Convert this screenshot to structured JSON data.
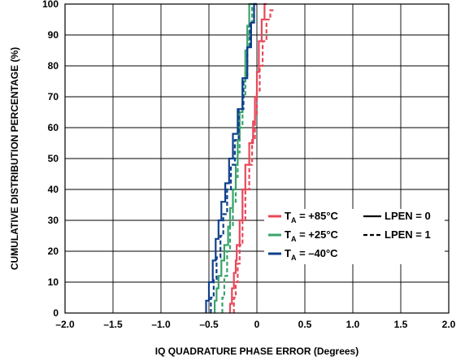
{
  "chart_data": {
    "type": "line",
    "xlabel": "IQ QUADRATURE PHASE ERROR (Degrees)",
    "ylabel": "CUMULATIVE DISTRIBUTION PERCENTAGE (%)",
    "xlim": [
      -2.0,
      2.0
    ],
    "ylim": [
      0,
      100
    ],
    "xticks": [
      "–2.0",
      "–1.5",
      "–1.0",
      "–0.5",
      "0",
      "0.5",
      "1.0",
      "1.5",
      "2.0"
    ],
    "yticks": [
      "0",
      "10",
      "20",
      "30",
      "40",
      "50",
      "60",
      "70",
      "80",
      "90",
      "100"
    ],
    "grid": true,
    "legend": {
      "placement": "center-right",
      "temperature_entries": [
        {
          "prefix": "T",
          "sub": "A",
          "suffix": " = +85°C",
          "color": "#e8485a"
        },
        {
          "prefix": "T",
          "sub": "A",
          "suffix": " = +25°C",
          "color": "#3aa36b"
        },
        {
          "prefix": "T",
          "sub": "A",
          "suffix": " = –40°C",
          "color": "#0f3f8c"
        }
      ],
      "style_entries": [
        {
          "label": "LPEN = 0",
          "dash": "solid"
        },
        {
          "label": "LPEN = 1",
          "dash": "dashed"
        }
      ]
    },
    "series": [
      {
        "temp": "+85°C",
        "lpen": 0,
        "color": "#e8485a",
        "dash": "solid",
        "x": [
          -0.28,
          -0.26,
          -0.24,
          -0.22,
          -0.21,
          -0.18,
          -0.15,
          -0.12,
          -0.08,
          -0.04,
          -0.02,
          0.0,
          0.02,
          0.05,
          0.08,
          0.1
        ],
        "y": [
          0,
          3,
          8,
          13,
          17,
          22,
          30,
          40,
          48,
          55,
          62,
          70,
          78,
          88,
          95,
          100
        ]
      },
      {
        "temp": "+85°C",
        "lpen": 1,
        "color": "#e8485a",
        "dash": "dashed",
        "x": [
          -0.24,
          -0.22,
          -0.2,
          -0.18,
          -0.15,
          -0.12,
          -0.08,
          -0.05,
          -0.02,
          0.0,
          0.03,
          0.06,
          0.1,
          0.14,
          0.18
        ],
        "y": [
          0,
          5,
          10,
          16,
          22,
          30,
          40,
          48,
          56,
          64,
          72,
          80,
          88,
          95,
          98
        ]
      },
      {
        "temp": "+25°C",
        "lpen": 0,
        "color": "#3aa36b",
        "dash": "solid",
        "x": [
          -0.44,
          -0.42,
          -0.4,
          -0.37,
          -0.34,
          -0.3,
          -0.28,
          -0.25,
          -0.22,
          -0.2,
          -0.18,
          -0.15,
          -0.12,
          -0.1,
          -0.08,
          -0.05
        ],
        "y": [
          0,
          4,
          8,
          12,
          17,
          22,
          28,
          34,
          40,
          48,
          56,
          65,
          75,
          85,
          93,
          100
        ]
      },
      {
        "temp": "+25°C",
        "lpen": 1,
        "color": "#3aa36b",
        "dash": "dashed",
        "x": [
          -0.36,
          -0.34,
          -0.31,
          -0.28,
          -0.25,
          -0.22,
          -0.2,
          -0.18,
          -0.15,
          -0.12,
          -0.1,
          -0.08,
          -0.05,
          -0.02
        ],
        "y": [
          0,
          5,
          12,
          20,
          28,
          36,
          44,
          52,
          60,
          70,
          78,
          86,
          94,
          100
        ]
      },
      {
        "temp": "–40°C",
        "lpen": 0,
        "color": "#0f3f8c",
        "dash": "solid",
        "x": [
          -0.53,
          -0.5,
          -0.46,
          -0.43,
          -0.4,
          -0.37,
          -0.33,
          -0.29,
          -0.25,
          -0.2,
          -0.15,
          -0.1,
          -0.06,
          -0.03,
          0.0
        ],
        "y": [
          0,
          4,
          10,
          17,
          24,
          30,
          36,
          42,
          50,
          58,
          66,
          76,
          86,
          94,
          100
        ]
      },
      {
        "temp": "–40°C",
        "lpen": 1,
        "color": "#0f3f8c",
        "dash": "dashed",
        "x": [
          -0.48,
          -0.45,
          -0.42,
          -0.38,
          -0.35,
          -0.31,
          -0.27,
          -0.23,
          -0.19,
          -0.14,
          -0.1,
          -0.07,
          -0.03,
          0.0
        ],
        "y": [
          0,
          5,
          11,
          18,
          25,
          32,
          40,
          48,
          56,
          66,
          76,
          86,
          94,
          100
        ]
      }
    ]
  }
}
